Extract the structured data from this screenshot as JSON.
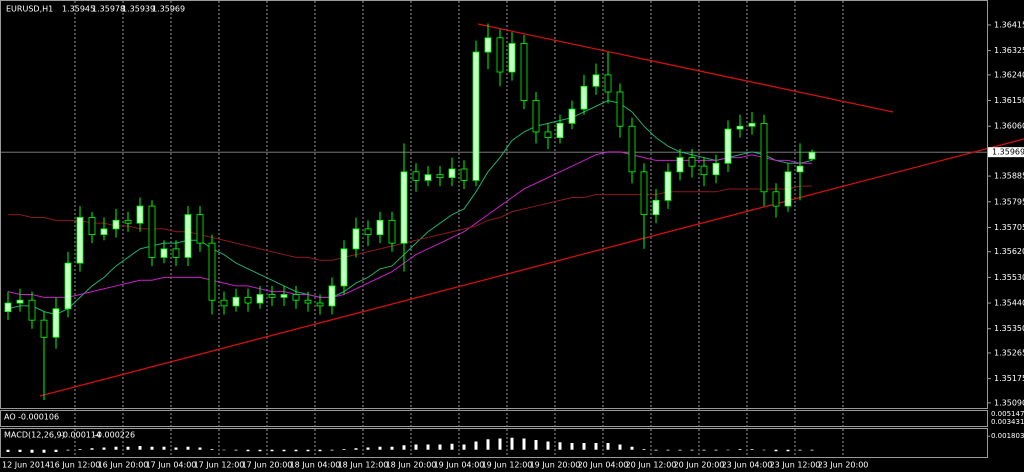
{
  "chart_data": {
    "type": "candlestick",
    "symbol": "EURUSD,H1",
    "up_color": "#c8ffc8",
    "down_color": "#000000",
    "wick_color": "#00ff00",
    "open": [
      1.3541,
      1.3544,
      1.3545,
      1.3538,
      1.3532,
      1.3542,
      1.3558,
      1.3574,
      1.3568,
      1.357,
      1.3573,
      1.3572,
      1.3578,
      1.356,
      1.3563,
      1.356,
      1.3575,
      1.3565,
      1.3545,
      1.3543,
      1.3546,
      1.3544,
      1.3547,
      1.3546,
      1.3547,
      1.3545,
      1.3544,
      1.3543,
      1.355,
      1.3563,
      1.357,
      1.3568,
      1.3573,
      1.3565,
      1.359,
      1.3587,
      1.3589,
      1.3588,
      1.3591,
      1.3587,
      1.3632,
      1.3637,
      1.3625,
      1.3635,
      1.3615,
      1.3604,
      1.3602,
      1.3607,
      1.3612,
      1.362,
      1.3624,
      1.3618,
      1.3606,
      1.359,
      1.3575,
      1.358,
      1.359,
      1.3595,
      1.3592,
      1.3589,
      1.3593,
      1.3605,
      1.3606,
      1.3607,
      1.3583,
      1.3578,
      1.359,
      1.35945
    ],
    "high": [
      1.3548,
      1.3549,
      1.3548,
      1.3541,
      1.3546,
      1.3562,
      1.3578,
      1.3576,
      1.3574,
      1.3577,
      1.3576,
      1.3581,
      1.358,
      1.3566,
      1.3566,
      1.3578,
      1.3578,
      1.3568,
      1.3548,
      1.3549,
      1.3549,
      1.355,
      1.355,
      1.355,
      1.355,
      1.3548,
      1.3547,
      1.3553,
      1.3566,
      1.3574,
      1.3573,
      1.3576,
      1.3576,
      1.36,
      1.3593,
      1.3592,
      1.3592,
      1.3595,
      1.3594,
      1.3636,
      1.3642,
      1.364,
      1.3639,
      1.3638,
      1.3618,
      1.3607,
      1.361,
      1.3615,
      1.3624,
      1.3628,
      1.3632,
      1.3621,
      1.3609,
      1.3593,
      1.3584,
      1.3593,
      1.3598,
      1.3598,
      1.3595,
      1.3596,
      1.3608,
      1.361,
      1.3611,
      1.361,
      1.3586,
      1.3593,
      1.36,
      1.35978
    ],
    "low": [
      1.3538,
      1.3541,
      1.3535,
      1.351,
      1.3528,
      1.3539,
      1.3555,
      1.3565,
      1.3566,
      1.3567,
      1.3569,
      1.3569,
      1.3557,
      1.3558,
      1.3557,
      1.3557,
      1.3562,
      1.354,
      1.354,
      1.3541,
      1.3541,
      1.3542,
      1.3543,
      1.3543,
      1.3542,
      1.3541,
      1.354,
      1.354,
      1.3547,
      1.356,
      1.3564,
      1.3565,
      1.3562,
      1.3555,
      1.3583,
      1.3585,
      1.3585,
      1.3585,
      1.3584,
      1.3585,
      1.3626,
      1.362,
      1.3622,
      1.3612,
      1.36,
      1.3598,
      1.36,
      1.3605,
      1.361,
      1.3617,
      1.3614,
      1.3602,
      1.3586,
      1.3563,
      1.3572,
      1.3577,
      1.3587,
      1.3588,
      1.3585,
      1.3586,
      1.359,
      1.3602,
      1.3603,
      1.3578,
      1.3574,
      1.3576,
      1.358,
      1.35939
    ],
    "close": [
      1.3544,
      1.3545,
      1.3538,
      1.3532,
      1.3542,
      1.3558,
      1.3574,
      1.3568,
      1.357,
      1.3573,
      1.3572,
      1.3578,
      1.356,
      1.3563,
      1.356,
      1.3575,
      1.3565,
      1.3545,
      1.3543,
      1.3546,
      1.3544,
      1.3547,
      1.3546,
      1.3547,
      1.3545,
      1.3544,
      1.3543,
      1.355,
      1.3563,
      1.357,
      1.3568,
      1.3573,
      1.3565,
      1.359,
      1.3587,
      1.3589,
      1.3588,
      1.3591,
      1.3587,
      1.3632,
      1.3637,
      1.3625,
      1.3635,
      1.3615,
      1.3604,
      1.3602,
      1.3607,
      1.3612,
      1.362,
      1.3624,
      1.3618,
      1.3606,
      1.359,
      1.3575,
      1.358,
      1.359,
      1.3595,
      1.3592,
      1.3589,
      1.3593,
      1.3605,
      1.3606,
      1.3607,
      1.3583,
      1.3578,
      1.359,
      1.3592,
      1.35969
    ],
    "ma_lines": [
      {
        "color": "#1fae6e",
        "values": [
          1.3542,
          1.3543,
          1.3543,
          1.3541,
          1.354,
          1.3542,
          1.3546,
          1.355,
          1.3553,
          1.3557,
          1.356,
          1.3563,
          1.3564,
          1.3565,
          1.3565,
          1.3566,
          1.3566,
          1.3563,
          1.3561,
          1.3558,
          1.3556,
          1.3554,
          1.3552,
          1.355,
          1.3548,
          1.3547,
          1.3546,
          1.3546,
          1.3548,
          1.3551,
          1.3553,
          1.3556,
          1.3557,
          1.3561,
          1.3565,
          1.3569,
          1.3572,
          1.3575,
          1.3577,
          1.3583,
          1.359,
          1.3595,
          1.3601,
          1.3604,
          1.3606,
          1.3607,
          1.3608,
          1.3609,
          1.3611,
          1.3613,
          1.3615,
          1.3614,
          1.3611,
          1.3606,
          1.3602,
          1.3599,
          1.3597,
          1.3596,
          1.3595,
          1.3594,
          1.3595,
          1.3596,
          1.3597,
          1.3596,
          1.3594,
          1.3593,
          1.3593,
          1.3594
        ]
      },
      {
        "color": "#c81ec8",
        "values": [
          1.3548,
          1.3547,
          1.3547,
          1.3546,
          1.3546,
          1.3546,
          1.3547,
          1.3548,
          1.3549,
          1.355,
          1.3551,
          1.3552,
          1.3552,
          1.3553,
          1.3553,
          1.3553,
          1.3553,
          1.3552,
          1.3551,
          1.355,
          1.355,
          1.3549,
          1.3548,
          1.3548,
          1.3547,
          1.3547,
          1.3546,
          1.3546,
          1.3547,
          1.3549,
          1.3551,
          1.3553,
          1.3555,
          1.3558,
          1.3561,
          1.3563,
          1.3565,
          1.3567,
          1.3569,
          1.3572,
          1.3575,
          1.3578,
          1.3581,
          1.3584,
          1.3586,
          1.3588,
          1.359,
          1.3592,
          1.3594,
          1.3596,
          1.3597,
          1.3597,
          1.3596,
          1.3595,
          1.3594,
          1.3594,
          1.3594,
          1.3594,
          1.3594,
          1.3594,
          1.3595,
          1.3595,
          1.3596,
          1.3595,
          1.3594,
          1.3594,
          1.3593,
          1.3593
        ]
      },
      {
        "color": "#8b1a1a",
        "values": [
          1.3575,
          1.3575,
          1.3574,
          1.3574,
          1.3573,
          1.3573,
          1.3573,
          1.3572,
          1.3572,
          1.3571,
          1.3571,
          1.357,
          1.357,
          1.357,
          1.3569,
          1.3569,
          1.3568,
          1.3567,
          1.3566,
          1.3565,
          1.3564,
          1.3563,
          1.3562,
          1.3561,
          1.356,
          1.356,
          1.3559,
          1.3559,
          1.356,
          1.3561,
          1.3562,
          1.3563,
          1.3564,
          1.3565,
          1.3566,
          1.3567,
          1.3568,
          1.3569,
          1.357,
          1.3571,
          1.3573,
          1.3574,
          1.3576,
          1.3577,
          1.3578,
          1.3579,
          1.358,
          1.3581,
          1.3581,
          1.3582,
          1.3582,
          1.3582,
          1.3582,
          1.3582,
          1.3582,
          1.3583,
          1.3583,
          1.3583,
          1.3583,
          1.3583,
          1.3584,
          1.3584,
          1.3584,
          1.3584,
          1.3584,
          1.3584,
          1.3585,
          1.3585
        ]
      }
    ],
    "ylim": [
      1.35072,
      1.36492
    ],
    "yticks": [
      1.36415,
      1.36325,
      {
        "value": 1.3624,
        "label": "1.36240"
      },
      {
        "value": 1.3615,
        "label": "1.36150"
      },
      {
        "value": 1.3606,
        "label": "1.36060"
      },
      1.35885,
      1.35795,
      1.35705,
      {
        "value": 1.3562,
        "label": "1.35620"
      },
      {
        "value": 1.3553,
        "label": "1.35530"
      },
      {
        "value": 1.3544,
        "label": "1.35440"
      },
      {
        "value": 1.3535,
        "label": "1.35350"
      },
      1.35265,
      1.35175,
      {
        "value": 1.3509,
        "label": "1.35090"
      }
    ],
    "xtick_labels": [
      "12 Jun 2014",
      "16 Jun 12:00",
      "16 Jun 20:00",
      "17 Jun 04:00",
      "17 Jun 12:00",
      "17 Jun 20:00",
      "18 Jun 04:00",
      "18 Jun 12:00",
      "18 Jun 20:00",
      "19 Jun 04:00",
      "19 Jun 12:00",
      "19 Jun 20:00",
      "20 Jun 04:00",
      "20 Jun 12:00",
      "20 Jun 20:00",
      "23 Jun 04:00",
      "23 Jun 12:00",
      "23 Jun 20:00"
    ],
    "ao": {
      "name": "AO",
      "value": -0.000106,
      "yticks": [
        0.005147,
        0.003431
      ]
    },
    "macd": {
      "name": "MACD(12,26,9)",
      "main": -0.000114,
      "signal": -0.000226,
      "color": "#ffffff",
      "ylim": [
        -0.00097,
        0.00277
      ],
      "yticks": [
        0.001803
      ],
      "values": [
        -0.0003,
        -0.0003,
        -0.0004,
        -0.0004,
        -0.0003,
        -0.0001,
        0.0001,
        0.0002,
        0.0003,
        0.0004,
        0.0004,
        0.0005,
        0.0004,
        0.0004,
        0.0003,
        0.0004,
        0.0003,
        0.0001,
        0,
        -0.0001,
        -0.0002,
        -0.0002,
        -0.0002,
        -0.0002,
        -0.0002,
        -0.0002,
        -0.0002,
        -0.0001,
        0.0001,
        0.0002,
        0.0003,
        0.0004,
        0.0004,
        0.0006,
        0.0007,
        0.0007,
        0.0007,
        0.0008,
        0.0007,
        0.0011,
        0.0014,
        0.0015,
        0.0016,
        0.0015,
        0.0013,
        0.0011,
        0.001,
        0.0009,
        0.0009,
        0.0009,
        0.0009,
        0.0007,
        0.0004,
        0.0001,
        -0.0001,
        -0.0001,
        -0.0001,
        -0.0001,
        -0.0001,
        -0.0001,
        0,
        0.0001,
        0.0001,
        0,
        -0.0002,
        -0.0002,
        -0.0001,
        -0.0001
      ]
    }
  }
}
